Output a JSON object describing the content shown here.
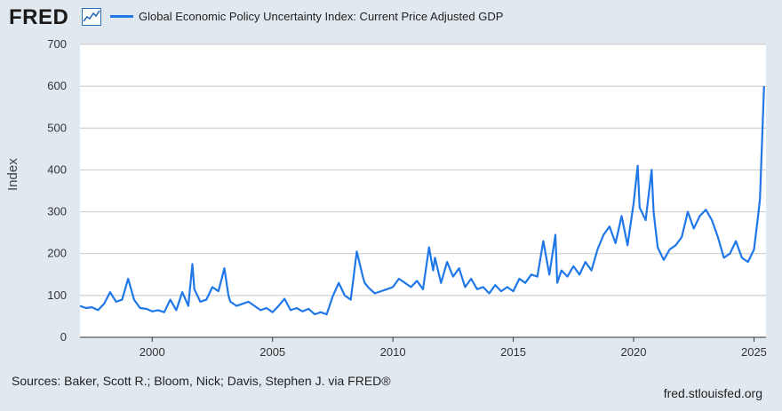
{
  "header": {
    "logo_text": "FRED",
    "logo_icon": "trend-chart-icon",
    "legend_label": "Global Economic Policy Uncertainty Index: Current Price Adjusted GDP"
  },
  "footer": {
    "sources": "Sources: Baker, Scott R.; Bloom, Nick; Davis, Stephen J. via FRED®",
    "url": "fred.stlouisfed.org"
  },
  "colors": {
    "series": "#1f77e8",
    "plot_bg": "#ffffff",
    "page_bg": "#e1e9f0",
    "grid": "#c8c8c8"
  },
  "chart_data": {
    "type": "line",
    "title": "",
    "xlabel": "",
    "ylabel": "Index",
    "xlim": [
      1997.0,
      2025.5
    ],
    "ylim": [
      0,
      700
    ],
    "yticks": [
      0,
      100,
      200,
      300,
      400,
      500,
      600,
      700
    ],
    "xticks": [
      2000,
      2005,
      2010,
      2015,
      2020,
      2025
    ],
    "grid": true,
    "legend": "top-left",
    "series": [
      {
        "name": "Global Economic Policy Uncertainty Index: Current Price Adjusted GDP",
        "x": [
          1997.0,
          1997.25,
          1997.5,
          1997.75,
          1998.0,
          1998.25,
          1998.5,
          1998.75,
          1999.0,
          1999.25,
          1999.5,
          1999.75,
          2000.0,
          2000.25,
          2000.5,
          2000.75,
          2001.0,
          2001.25,
          2001.5,
          2001.67,
          2001.75,
          2002.0,
          2002.25,
          2002.5,
          2002.75,
          2003.0,
          2003.17,
          2003.25,
          2003.5,
          2003.75,
          2004.0,
          2004.25,
          2004.5,
          2004.75,
          2005.0,
          2005.25,
          2005.5,
          2005.75,
          2006.0,
          2006.25,
          2006.5,
          2006.75,
          2007.0,
          2007.25,
          2007.5,
          2007.75,
          2008.0,
          2008.25,
          2008.5,
          2008.75,
          2008.83,
          2009.0,
          2009.25,
          2009.5,
          2009.75,
          2010.0,
          2010.25,
          2010.5,
          2010.75,
          2011.0,
          2011.25,
          2011.5,
          2011.67,
          2011.75,
          2012.0,
          2012.25,
          2012.5,
          2012.75,
          2013.0,
          2013.25,
          2013.5,
          2013.75,
          2014.0,
          2014.25,
          2014.5,
          2014.75,
          2015.0,
          2015.25,
          2015.5,
          2015.75,
          2016.0,
          2016.25,
          2016.5,
          2016.75,
          2016.83,
          2017.0,
          2017.25,
          2017.5,
          2017.75,
          2018.0,
          2018.25,
          2018.5,
          2018.75,
          2019.0,
          2019.25,
          2019.5,
          2019.75,
          2020.0,
          2020.17,
          2020.25,
          2020.5,
          2020.75,
          2020.83,
          2021.0,
          2021.25,
          2021.5,
          2021.75,
          2022.0,
          2022.25,
          2022.5,
          2022.75,
          2023.0,
          2023.25,
          2023.5,
          2023.75,
          2024.0,
          2024.25,
          2024.5,
          2024.75,
          2025.0,
          2025.17,
          2025.25,
          2025.42
        ],
        "values": [
          75,
          70,
          72,
          65,
          80,
          108,
          85,
          90,
          140,
          90,
          70,
          68,
          62,
          65,
          60,
          90,
          65,
          108,
          75,
          175,
          115,
          85,
          90,
          120,
          110,
          165,
          100,
          85,
          75,
          80,
          85,
          75,
          65,
          70,
          60,
          75,
          92,
          65,
          70,
          62,
          68,
          55,
          60,
          55,
          98,
          130,
          100,
          90,
          205,
          145,
          130,
          118,
          105,
          110,
          115,
          120,
          140,
          130,
          120,
          135,
          115,
          215,
          160,
          190,
          130,
          180,
          145,
          165,
          120,
          140,
          115,
          120,
          105,
          125,
          110,
          120,
          110,
          140,
          130,
          150,
          145,
          230,
          150,
          245,
          130,
          160,
          145,
          170,
          150,
          180,
          160,
          210,
          245,
          265,
          225,
          290,
          220,
          320,
          410,
          310,
          280,
          400,
          300,
          215,
          185,
          210,
          220,
          240,
          300,
          260,
          290,
          305,
          280,
          240,
          190,
          200,
          230,
          190,
          180,
          210,
          290,
          330,
          600
        ]
      }
    ]
  }
}
